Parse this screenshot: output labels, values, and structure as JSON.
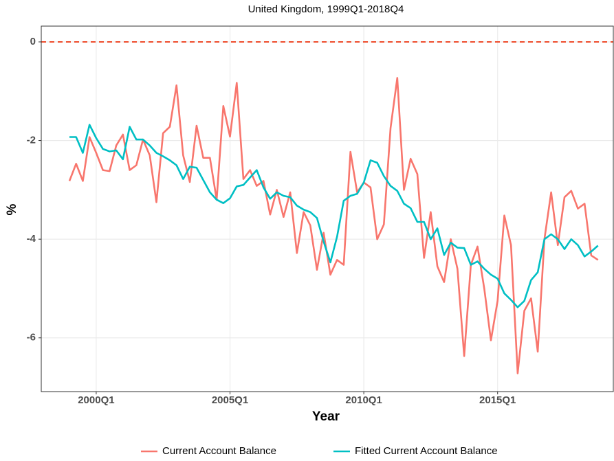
{
  "chart_data": {
    "type": "line",
    "title": "United Kingdom, 1999Q1-2018Q4",
    "x_label": "Year",
    "y_label": "%",
    "categories": [
      null,
      null,
      null,
      null,
      "2000Q1",
      null,
      null,
      null,
      null,
      null,
      null,
      null,
      null,
      null,
      null,
      null,
      null,
      null,
      null,
      null,
      null,
      null,
      null,
      null,
      "2005Q1",
      null,
      null,
      null,
      null,
      null,
      null,
      null,
      null,
      null,
      null,
      null,
      null,
      null,
      null,
      null,
      null,
      null,
      null,
      null,
      "2010Q1",
      null,
      null,
      null,
      null,
      null,
      null,
      null,
      null,
      null,
      null,
      null,
      null,
      null,
      null,
      null,
      null,
      null,
      null,
      null,
      "2015Q1",
      null,
      null,
      null,
      null,
      null,
      null,
      null,
      null,
      null,
      null,
      null,
      null,
      null,
      null,
      null
    ],
    "series": [
      {
        "name": "Current Account Balance",
        "color": "#f8766d",
        "values": [
          -2.82,
          -2.47,
          -2.82,
          -1.93,
          -2.25,
          -2.6,
          -2.62,
          -2.1,
          -1.88,
          -2.6,
          -2.5,
          -1.98,
          -2.3,
          -3.25,
          -1.85,
          -1.72,
          -0.88,
          -2.3,
          -2.84,
          -1.7,
          -2.35,
          -2.35,
          -3.2,
          -1.3,
          -1.92,
          -0.83,
          -2.78,
          -2.6,
          -2.92,
          -2.82,
          -3.5,
          -3.0,
          -3.55,
          -3.05,
          -4.28,
          -3.45,
          -3.72,
          -4.62,
          -3.87,
          -4.72,
          -4.42,
          -4.52,
          -2.23,
          -3.05,
          -2.85,
          -2.95,
          -4.0,
          -3.7,
          -1.75,
          -0.73,
          -3.0,
          -2.37,
          -2.68,
          -4.38,
          -3.45,
          -4.55,
          -4.87,
          -4.0,
          -4.6,
          -6.37,
          -4.52,
          -4.15,
          -5.0,
          -6.05,
          -5.25,
          -3.52,
          -4.12,
          -6.72,
          -5.45,
          -5.2,
          -6.28,
          -4.0,
          -3.05,
          -4.12,
          -3.15,
          -3.02,
          -3.38,
          -3.28,
          -4.33,
          -4.42
        ]
      },
      {
        "name": "Fitted Current Account Balance",
        "color": "#00bfc4",
        "values": [
          -1.93,
          -1.93,
          -2.25,
          -1.68,
          -1.95,
          -2.17,
          -2.22,
          -2.2,
          -2.38,
          -1.72,
          -1.98,
          -1.98,
          -2.1,
          -2.25,
          -2.32,
          -2.4,
          -2.5,
          -2.78,
          -2.53,
          -2.55,
          -2.8,
          -3.05,
          -3.2,
          -3.27,
          -3.17,
          -2.93,
          -2.9,
          -2.75,
          -2.6,
          -2.95,
          -3.18,
          -3.05,
          -3.12,
          -3.15,
          -3.32,
          -3.4,
          -3.45,
          -3.57,
          -4.05,
          -4.47,
          -3.95,
          -3.22,
          -3.12,
          -3.08,
          -2.85,
          -2.4,
          -2.45,
          -2.72,
          -2.92,
          -3.02,
          -3.28,
          -3.37,
          -3.65,
          -3.65,
          -4.0,
          -3.78,
          -4.32,
          -4.07,
          -4.17,
          -4.18,
          -4.52,
          -4.45,
          -4.6,
          -4.72,
          -4.8,
          -5.1,
          -5.23,
          -5.38,
          -5.25,
          -4.83,
          -4.67,
          -4.0,
          -3.9,
          -4.0,
          -4.2,
          -4.0,
          -4.12,
          -4.35,
          -4.25,
          -4.13
        ]
      }
    ],
    "ylim": [
      -7.09,
      0.32
    ],
    "yticks": [
      -6,
      -4,
      -2,
      0
    ],
    "grid": true,
    "hline": 0,
    "hline_color": "#ee4b2b",
    "legend": "bottom"
  }
}
